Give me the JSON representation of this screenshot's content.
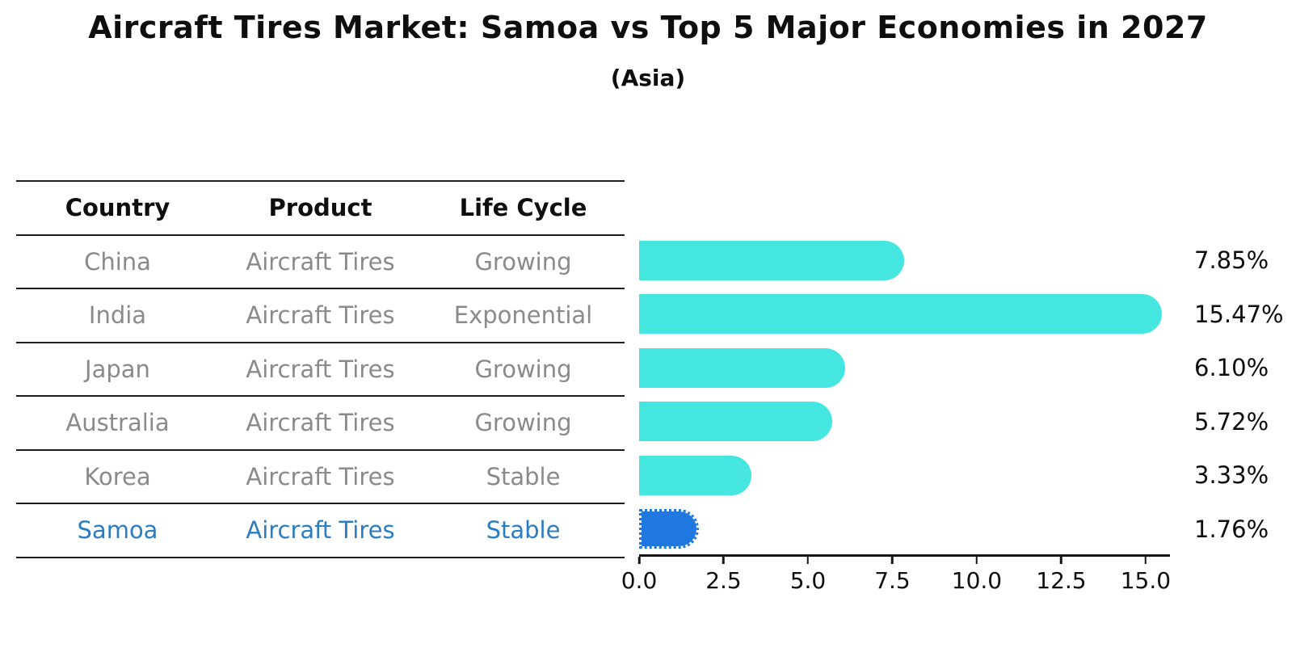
{
  "chart_data": {
    "type": "bar",
    "orientation": "horizontal",
    "title": "Aircraft Tires Market: Samoa vs Top 5 Major Economies in 2027",
    "subtitle": "(Asia)",
    "categories": [
      "China",
      "India",
      "Japan",
      "Australia",
      "Korea",
      "Samoa"
    ],
    "values": [
      7.85,
      15.47,
      6.1,
      5.72,
      3.33,
      1.76
    ],
    "value_labels": [
      "7.85%",
      "15.47%",
      "6.10%",
      "5.72%",
      "3.33%",
      "1.76%"
    ],
    "highlight_index": 5,
    "xlim": [
      0,
      15.72
    ],
    "x_ticks": [
      0.0,
      2.5,
      5.0,
      7.5,
      10.0,
      12.5,
      15.0
    ],
    "x_tick_labels": [
      "0.0",
      "2.5",
      "5.0",
      "7.5",
      "10.0",
      "12.5",
      "15.0"
    ],
    "grid": false,
    "legend": "none"
  },
  "table": {
    "headers": [
      "Country",
      "Product",
      "Life Cycle"
    ],
    "rows": [
      {
        "country": "China",
        "product": "Aircraft Tires",
        "life_cycle": "Growing",
        "highlight": false
      },
      {
        "country": "India",
        "product": "Aircraft Tires",
        "life_cycle": "Exponential",
        "highlight": false
      },
      {
        "country": "Japan",
        "product": "Aircraft Tires",
        "life_cycle": "Growing",
        "highlight": false
      },
      {
        "country": "Australia",
        "product": "Aircraft Tires",
        "life_cycle": "Growing",
        "highlight": false
      },
      {
        "country": "Korea",
        "product": "Aircraft Tires",
        "life_cycle": "Stable",
        "highlight": false
      },
      {
        "country": "Samoa",
        "product": "Aircraft Tires",
        "life_cycle": "Stable",
        "highlight": true
      }
    ]
  },
  "colors": {
    "bar": "#45e6df",
    "highlight_bar": "#1e78e0",
    "highlight_text": "#2b7dc2",
    "text": "#0e0e0e",
    "muted_text": "#8a8a8a",
    "line": "#1c1c1c"
  }
}
